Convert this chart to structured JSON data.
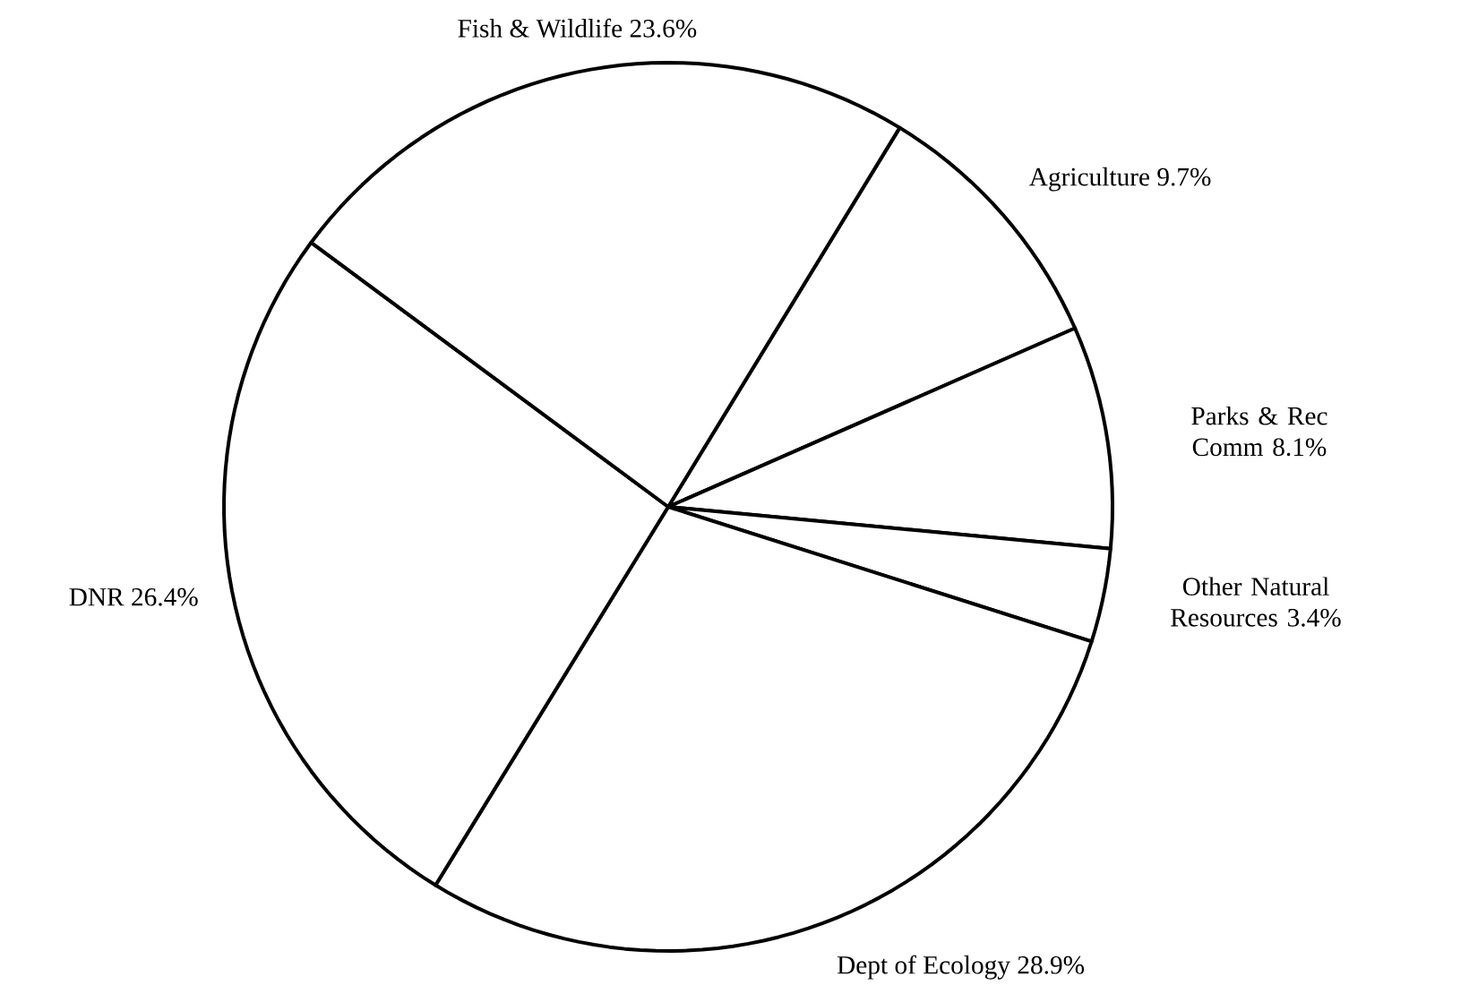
{
  "chart_data": {
    "type": "pie",
    "categories": [
      "Agriculture",
      "Parks & Rec Comm",
      "Other Natural Resources",
      "Dept of Ecology",
      "DNR",
      "Fish & Wildlife"
    ],
    "values": [
      9.7,
      8.1,
      3.4,
      28.9,
      26.4,
      23.6
    ],
    "value_labels": [
      "9.7%",
      "8.1%",
      "3.4%",
      "28.9%",
      "26.4%",
      "23.6%"
    ],
    "colors": [
      "#ffffff",
      "#ffffff",
      "#ffffff",
      "#ffffff",
      "#ffffff",
      "#ffffff"
    ]
  }
}
